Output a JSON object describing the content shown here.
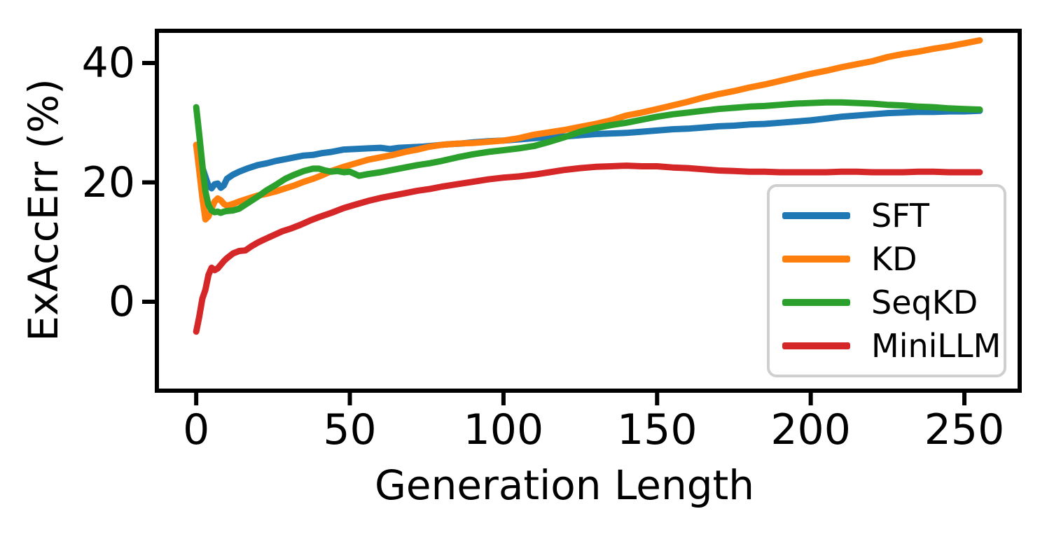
{
  "chart_data": {
    "type": "line",
    "title": "",
    "xlabel": "Generation Length",
    "ylabel": "ExAccErr (%)",
    "x_ticks": [
      0,
      50,
      100,
      150,
      200,
      250
    ],
    "y_ticks": [
      0,
      20,
      40
    ],
    "xlim": [
      -12.8,
      268
    ],
    "ylim": [
      -14.9,
      45.4
    ],
    "grid": false,
    "legend_position": "lower-right-inside",
    "series": [
      {
        "name": "SFT",
        "color": "#1f77b4",
        "points": [
          [
            0,
            26.2
          ],
          [
            2,
            22.5
          ],
          [
            4,
            19.4
          ],
          [
            5,
            19.0
          ],
          [
            6,
            19.7
          ],
          [
            7,
            19.8
          ],
          [
            8,
            19.1
          ],
          [
            9,
            19.5
          ],
          [
            10,
            20.6
          ],
          [
            12,
            21.3
          ],
          [
            14,
            21.8
          ],
          [
            17,
            22.4
          ],
          [
            20,
            22.9
          ],
          [
            23,
            23.2
          ],
          [
            26,
            23.6
          ],
          [
            29,
            23.9
          ],
          [
            32,
            24.2
          ],
          [
            35,
            24.5
          ],
          [
            38,
            24.6
          ],
          [
            41,
            24.9
          ],
          [
            44,
            25.1
          ],
          [
            48,
            25.5
          ],
          [
            52,
            25.6
          ],
          [
            56,
            25.7
          ],
          [
            60,
            25.8
          ],
          [
            63,
            25.6
          ],
          [
            66,
            25.8
          ],
          [
            70,
            25.9
          ],
          [
            74,
            26.0
          ],
          [
            78,
            26.2
          ],
          [
            82,
            26.4
          ],
          [
            86,
            26.5
          ],
          [
            90,
            26.7
          ],
          [
            95,
            26.9
          ],
          [
            100,
            27.0
          ],
          [
            105,
            27.2
          ],
          [
            110,
            27.4
          ],
          [
            115,
            27.6
          ],
          [
            120,
            27.7
          ],
          [
            125,
            27.9
          ],
          [
            130,
            28.1
          ],
          [
            135,
            28.2
          ],
          [
            140,
            28.3
          ],
          [
            145,
            28.5
          ],
          [
            150,
            28.7
          ],
          [
            155,
            28.9
          ],
          [
            160,
            29.0
          ],
          [
            165,
            29.2
          ],
          [
            170,
            29.4
          ],
          [
            175,
            29.5
          ],
          [
            180,
            29.7
          ],
          [
            185,
            29.8
          ],
          [
            190,
            30.0
          ],
          [
            195,
            30.2
          ],
          [
            200,
            30.4
          ],
          [
            205,
            30.7
          ],
          [
            210,
            31.0
          ],
          [
            215,
            31.2
          ],
          [
            220,
            31.4
          ],
          [
            225,
            31.6
          ],
          [
            230,
            31.7
          ],
          [
            235,
            31.8
          ],
          [
            240,
            31.8
          ],
          [
            245,
            31.9
          ],
          [
            250,
            31.9
          ],
          [
            255,
            32.0
          ]
        ]
      },
      {
        "name": "KD",
        "color": "#ff7f0e",
        "points": [
          [
            0,
            26.3
          ],
          [
            1,
            22.0
          ],
          [
            2,
            17.5
          ],
          [
            3,
            13.8
          ],
          [
            4,
            14.3
          ],
          [
            5,
            15.6
          ],
          [
            6,
            16.8
          ],
          [
            7,
            17.3
          ],
          [
            8,
            17.0
          ],
          [
            9,
            16.4
          ],
          [
            10,
            16.1
          ],
          [
            12,
            16.4
          ],
          [
            14,
            16.8
          ],
          [
            17,
            17.3
          ],
          [
            20,
            17.8
          ],
          [
            23,
            18.1
          ],
          [
            26,
            18.5
          ],
          [
            29,
            19.0
          ],
          [
            32,
            19.5
          ],
          [
            35,
            20.1
          ],
          [
            38,
            20.6
          ],
          [
            41,
            21.2
          ],
          [
            44,
            21.9
          ],
          [
            48,
            22.6
          ],
          [
            52,
            23.2
          ],
          [
            56,
            23.8
          ],
          [
            60,
            24.2
          ],
          [
            64,
            24.6
          ],
          [
            68,
            25.1
          ],
          [
            72,
            25.5
          ],
          [
            76,
            26.0
          ],
          [
            80,
            26.3
          ],
          [
            85,
            26.5
          ],
          [
            90,
            26.6
          ],
          [
            95,
            26.8
          ],
          [
            100,
            27.0
          ],
          [
            105,
            27.4
          ],
          [
            110,
            28.0
          ],
          [
            115,
            28.4
          ],
          [
            120,
            28.8
          ],
          [
            125,
            29.3
          ],
          [
            130,
            29.8
          ],
          [
            135,
            30.4
          ],
          [
            140,
            31.2
          ],
          [
            145,
            31.7
          ],
          [
            150,
            32.3
          ],
          [
            155,
            32.9
          ],
          [
            160,
            33.5
          ],
          [
            165,
            34.2
          ],
          [
            170,
            34.8
          ],
          [
            175,
            35.3
          ],
          [
            180,
            35.9
          ],
          [
            185,
            36.4
          ],
          [
            190,
            37.0
          ],
          [
            195,
            37.6
          ],
          [
            200,
            38.2
          ],
          [
            205,
            38.7
          ],
          [
            210,
            39.3
          ],
          [
            215,
            39.8
          ],
          [
            220,
            40.3
          ],
          [
            225,
            41.0
          ],
          [
            230,
            41.5
          ],
          [
            235,
            41.9
          ],
          [
            240,
            42.4
          ],
          [
            245,
            42.8
          ],
          [
            250,
            43.3
          ],
          [
            255,
            43.8
          ]
        ]
      },
      {
        "name": "SeqKD",
        "color": "#2ca02c",
        "points": [
          [
            0,
            32.6
          ],
          [
            1,
            28.0
          ],
          [
            2,
            23.0
          ],
          [
            3,
            18.5
          ],
          [
            4,
            16.2
          ],
          [
            5,
            15.3
          ],
          [
            6,
            15.0
          ],
          [
            7,
            15.1
          ],
          [
            8,
            14.9
          ],
          [
            9,
            15.1
          ],
          [
            10,
            15.2
          ],
          [
            12,
            15.3
          ],
          [
            14,
            15.6
          ],
          [
            17,
            16.6
          ],
          [
            20,
            17.6
          ],
          [
            23,
            18.7
          ],
          [
            26,
            19.6
          ],
          [
            29,
            20.6
          ],
          [
            32,
            21.3
          ],
          [
            35,
            21.9
          ],
          [
            38,
            22.3
          ],
          [
            40,
            22.3
          ],
          [
            42,
            22.0
          ],
          [
            44,
            21.8
          ],
          [
            46,
            21.9
          ],
          [
            48,
            21.7
          ],
          [
            50,
            21.8
          ],
          [
            53,
            21.1
          ],
          [
            56,
            21.4
          ],
          [
            60,
            21.7
          ],
          [
            64,
            22.1
          ],
          [
            68,
            22.5
          ],
          [
            72,
            22.9
          ],
          [
            76,
            23.2
          ],
          [
            80,
            23.6
          ],
          [
            85,
            24.2
          ],
          [
            90,
            24.7
          ],
          [
            95,
            25.1
          ],
          [
            100,
            25.4
          ],
          [
            105,
            25.7
          ],
          [
            110,
            26.1
          ],
          [
            115,
            26.8
          ],
          [
            120,
            27.6
          ],
          [
            125,
            28.5
          ],
          [
            130,
            29.1
          ],
          [
            135,
            29.6
          ],
          [
            140,
            30.0
          ],
          [
            145,
            30.5
          ],
          [
            150,
            31.0
          ],
          [
            155,
            31.4
          ],
          [
            160,
            31.7
          ],
          [
            165,
            32.0
          ],
          [
            170,
            32.3
          ],
          [
            175,
            32.5
          ],
          [
            180,
            32.7
          ],
          [
            185,
            32.8
          ],
          [
            190,
            33.0
          ],
          [
            195,
            33.2
          ],
          [
            200,
            33.3
          ],
          [
            205,
            33.4
          ],
          [
            210,
            33.4
          ],
          [
            215,
            33.3
          ],
          [
            220,
            33.2
          ],
          [
            225,
            33.0
          ],
          [
            230,
            32.9
          ],
          [
            235,
            32.7
          ],
          [
            240,
            32.6
          ],
          [
            245,
            32.4
          ],
          [
            250,
            32.3
          ],
          [
            255,
            32.2
          ]
        ]
      },
      {
        "name": "MiniLLM",
        "color": "#d62728",
        "points": [
          [
            0,
            -5.0
          ],
          [
            1,
            -2.5
          ],
          [
            2,
            0.5
          ],
          [
            3,
            2.0
          ],
          [
            4,
            4.5
          ],
          [
            5,
            5.7
          ],
          [
            6,
            5.3
          ],
          [
            7,
            5.6
          ],
          [
            8,
            6.2
          ],
          [
            9,
            6.8
          ],
          [
            10,
            7.3
          ],
          [
            12,
            8.1
          ],
          [
            14,
            8.5
          ],
          [
            16,
            8.6
          ],
          [
            18,
            9.3
          ],
          [
            20,
            9.9
          ],
          [
            22,
            10.4
          ],
          [
            25,
            11.1
          ],
          [
            28,
            11.8
          ],
          [
            31,
            12.3
          ],
          [
            34,
            12.9
          ],
          [
            37,
            13.6
          ],
          [
            40,
            14.2
          ],
          [
            44,
            14.9
          ],
          [
            48,
            15.7
          ],
          [
            52,
            16.3
          ],
          [
            56,
            16.9
          ],
          [
            60,
            17.4
          ],
          [
            64,
            17.8
          ],
          [
            68,
            18.2
          ],
          [
            72,
            18.6
          ],
          [
            76,
            18.9
          ],
          [
            80,
            19.3
          ],
          [
            85,
            19.7
          ],
          [
            90,
            20.1
          ],
          [
            95,
            20.5
          ],
          [
            100,
            20.8
          ],
          [
            105,
            21.0
          ],
          [
            110,
            21.3
          ],
          [
            115,
            21.7
          ],
          [
            120,
            22.1
          ],
          [
            125,
            22.4
          ],
          [
            130,
            22.6
          ],
          [
            135,
            22.7
          ],
          [
            140,
            22.8
          ],
          [
            145,
            22.7
          ],
          [
            150,
            22.7
          ],
          [
            155,
            22.5
          ],
          [
            160,
            22.4
          ],
          [
            165,
            22.2
          ],
          [
            170,
            22.0
          ],
          [
            175,
            21.9
          ],
          [
            180,
            21.8
          ],
          [
            185,
            21.8
          ],
          [
            190,
            21.7
          ],
          [
            195,
            21.7
          ],
          [
            200,
            21.7
          ],
          [
            205,
            21.7
          ],
          [
            210,
            21.8
          ],
          [
            215,
            21.8
          ],
          [
            220,
            21.7
          ],
          [
            225,
            21.7
          ],
          [
            230,
            21.7
          ],
          [
            235,
            21.8
          ],
          [
            240,
            21.8
          ],
          [
            245,
            21.7
          ],
          [
            250,
            21.7
          ],
          [
            255,
            21.7
          ]
        ]
      }
    ],
    "colors": {
      "axes": "#000000",
      "background": "#ffffff",
      "legend_border": "#cfcfcf"
    }
  }
}
